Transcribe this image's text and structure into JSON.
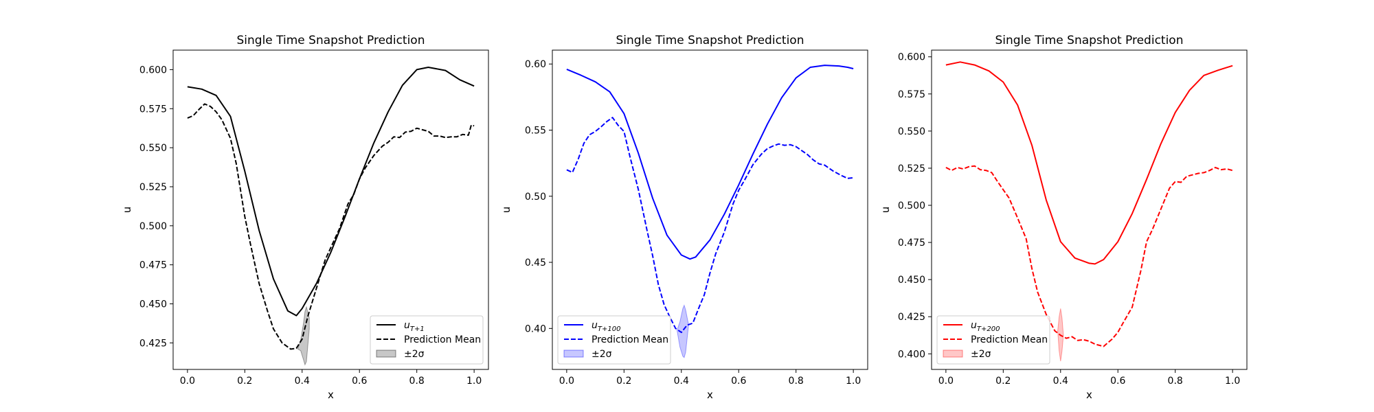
{
  "figure": {
    "background": "#ffffff"
  },
  "chart_data": [
    {
      "type": "line",
      "title": "Single Time Snapshot Prediction",
      "xlabel": "x",
      "ylabel": "u",
      "xlim": [
        -0.05,
        1.05
      ],
      "ylim": [
        0.408,
        0.6125
      ],
      "xticks": [
        0.0,
        0.2,
        0.4,
        0.6,
        0.8,
        1.0
      ],
      "xtick_labels": [
        "0.0",
        "0.2",
        "0.4",
        "0.6",
        "0.8",
        "1.0"
      ],
      "yticks": [
        0.425,
        0.45,
        0.475,
        0.5,
        0.525,
        0.55,
        0.575,
        0.6
      ],
      "ytick_labels": [
        "0.425",
        "0.450",
        "0.475",
        "0.500",
        "0.525",
        "0.550",
        "0.575",
        "0.600"
      ],
      "color": "#000000",
      "legend_position": "lower-right",
      "series": [
        {
          "name": "u_{T+1}",
          "label_main": "u",
          "label_sub": "T+1",
          "style": "solid",
          "x": [
            0,
            0.05,
            0.1,
            0.15,
            0.2,
            0.25,
            0.3,
            0.35,
            0.38,
            0.4,
            0.45,
            0.5,
            0.55,
            0.6,
            0.65,
            0.7,
            0.75,
            0.8,
            0.84,
            0.9,
            0.95,
            1.0
          ],
          "y": [
            0.589,
            0.5875,
            0.5835,
            0.57,
            0.535,
            0.497,
            0.466,
            0.4455,
            0.4425,
            0.447,
            0.463,
            0.483,
            0.506,
            0.53,
            0.553,
            0.573,
            0.59,
            0.6,
            0.6015,
            0.5995,
            0.5935,
            0.5895
          ]
        },
        {
          "name": "Prediction Mean",
          "style": "dashed",
          "x": [
            0,
            0.02,
            0.04,
            0.06,
            0.08,
            0.1,
            0.12,
            0.15,
            0.17,
            0.2,
            0.22,
            0.25,
            0.28,
            0.3,
            0.33,
            0.36,
            0.38,
            0.4,
            0.42,
            0.45,
            0.48,
            0.5,
            0.53,
            0.56,
            0.58,
            0.6,
            0.62,
            0.65,
            0.68,
            0.7,
            0.72,
            0.74,
            0.76,
            0.78,
            0.8,
            0.82,
            0.84,
            0.86,
            0.88,
            0.9,
            0.92,
            0.94,
            0.96,
            0.98,
            0.99,
            1.0
          ],
          "y": [
            0.569,
            0.5705,
            0.5745,
            0.578,
            0.5765,
            0.573,
            0.568,
            0.556,
            0.54,
            0.506,
            0.488,
            0.463,
            0.445,
            0.434,
            0.425,
            0.421,
            0.4215,
            0.4275,
            0.442,
            0.46,
            0.478,
            0.486,
            0.498,
            0.514,
            0.52,
            0.53,
            0.537,
            0.545,
            0.551,
            0.5535,
            0.557,
            0.5565,
            0.56,
            0.5605,
            0.5625,
            0.5615,
            0.5605,
            0.5575,
            0.5575,
            0.5565,
            0.557,
            0.557,
            0.5585,
            0.558,
            0.5645,
            0.564
          ]
        },
        {
          "name": "±2σ",
          "style": "band",
          "x": [
            0.385,
            0.395,
            0.405,
            0.41,
            0.415,
            0.425
          ],
          "lower": [
            0.421,
            0.42,
            0.414,
            0.411,
            0.413,
            0.434
          ],
          "upper": [
            0.421,
            0.427,
            0.438,
            0.445,
            0.448,
            0.441
          ]
        }
      ]
    },
    {
      "type": "line",
      "title": "Single Time Snapshot Prediction",
      "xlabel": "x",
      "ylabel": "u",
      "xlim": [
        -0.05,
        1.05
      ],
      "ylim": [
        0.369,
        0.6105
      ],
      "xticks": [
        0.0,
        0.2,
        0.4,
        0.6,
        0.8,
        1.0
      ],
      "xtick_labels": [
        "0.0",
        "0.2",
        "0.4",
        "0.6",
        "0.8",
        "1.0"
      ],
      "yticks": [
        0.4,
        0.45,
        0.5,
        0.55,
        0.6
      ],
      "ytick_labels": [
        "0.40",
        "0.45",
        "0.50",
        "0.55",
        "0.60"
      ],
      "color": "#0000ff",
      "legend_position": "lower-left",
      "series": [
        {
          "name": "u_{T+100}",
          "label_main": "u",
          "label_sub": "T+100",
          "style": "solid",
          "x": [
            0,
            0.05,
            0.1,
            0.15,
            0.2,
            0.25,
            0.3,
            0.35,
            0.4,
            0.43,
            0.45,
            0.5,
            0.55,
            0.6,
            0.65,
            0.7,
            0.75,
            0.8,
            0.85,
            0.9,
            0.95,
            0.98,
            1.0
          ],
          "y": [
            0.596,
            0.5915,
            0.5865,
            0.579,
            0.5625,
            0.5325,
            0.4985,
            0.4705,
            0.4555,
            0.4525,
            0.454,
            0.467,
            0.4865,
            0.5085,
            0.532,
            0.5545,
            0.5745,
            0.5895,
            0.5975,
            0.599,
            0.5985,
            0.5975,
            0.5965
          ]
        },
        {
          "name": "Prediction Mean",
          "style": "dashed",
          "x": [
            0,
            0.02,
            0.04,
            0.06,
            0.08,
            0.1,
            0.12,
            0.14,
            0.16,
            0.18,
            0.2,
            0.22,
            0.25,
            0.28,
            0.3,
            0.32,
            0.34,
            0.36,
            0.38,
            0.4,
            0.42,
            0.44,
            0.46,
            0.48,
            0.5,
            0.52,
            0.55,
            0.58,
            0.6,
            0.62,
            0.65,
            0.68,
            0.7,
            0.72,
            0.74,
            0.76,
            0.78,
            0.8,
            0.82,
            0.84,
            0.86,
            0.88,
            0.9,
            0.93,
            0.96,
            0.98,
            1.0
          ],
          "y": [
            0.52,
            0.518,
            0.528,
            0.54,
            0.5465,
            0.549,
            0.5525,
            0.5565,
            0.5595,
            0.5535,
            0.549,
            0.5305,
            0.505,
            0.4745,
            0.455,
            0.433,
            0.418,
            0.4085,
            0.4,
            0.397,
            0.4025,
            0.404,
            0.415,
            0.4255,
            0.442,
            0.4565,
            0.473,
            0.494,
            0.5045,
            0.512,
            0.524,
            0.532,
            0.536,
            0.538,
            0.5395,
            0.5385,
            0.539,
            0.5375,
            0.5345,
            0.5315,
            0.5275,
            0.5245,
            0.5235,
            0.519,
            0.5155,
            0.5135,
            0.514
          ]
        },
        {
          "name": "±2σ",
          "style": "band",
          "x": [
            0.385,
            0.395,
            0.405,
            0.41,
            0.415,
            0.425
          ],
          "lower": [
            0.3985,
            0.386,
            0.379,
            0.378,
            0.382,
            0.402
          ],
          "upper": [
            0.3985,
            0.405,
            0.415,
            0.4175,
            0.414,
            0.403
          ]
        }
      ]
    },
    {
      "type": "line",
      "title": "Single Time Snapshot Prediction",
      "xlabel": "x",
      "ylabel": "u",
      "xlim": [
        -0.05,
        1.05
      ],
      "ylim": [
        0.3895,
        0.6045
      ],
      "xticks": [
        0.0,
        0.2,
        0.4,
        0.6,
        0.8,
        1.0
      ],
      "xtick_labels": [
        "0.0",
        "0.2",
        "0.4",
        "0.6",
        "0.8",
        "1.0"
      ],
      "yticks": [
        0.4,
        0.425,
        0.45,
        0.475,
        0.5,
        0.525,
        0.55,
        0.575,
        0.6
      ],
      "ytick_labels": [
        "0.400",
        "0.425",
        "0.450",
        "0.475",
        "0.500",
        "0.525",
        "0.550",
        "0.575",
        "0.600"
      ],
      "color": "#ff0000",
      "legend_position": "lower-left",
      "series": [
        {
          "name": "u_{T+200}",
          "label_main": "u",
          "label_sub": "T+200",
          "style": "solid",
          "x": [
            0,
            0.05,
            0.1,
            0.15,
            0.2,
            0.25,
            0.3,
            0.35,
            0.4,
            0.45,
            0.5,
            0.52,
            0.55,
            0.6,
            0.65,
            0.7,
            0.75,
            0.8,
            0.85,
            0.9,
            0.95,
            1.0
          ],
          "y": [
            0.5945,
            0.5965,
            0.5945,
            0.5905,
            0.583,
            0.5675,
            0.5405,
            0.5035,
            0.4755,
            0.4645,
            0.461,
            0.4605,
            0.4635,
            0.4755,
            0.4945,
            0.5175,
            0.5415,
            0.5625,
            0.5775,
            0.5875,
            0.591,
            0.594
          ]
        },
        {
          "name": "Prediction Mean",
          "style": "dashed",
          "x": [
            0,
            0.02,
            0.04,
            0.06,
            0.08,
            0.1,
            0.12,
            0.14,
            0.16,
            0.18,
            0.2,
            0.22,
            0.25,
            0.28,
            0.3,
            0.32,
            0.35,
            0.38,
            0.4,
            0.42,
            0.44,
            0.46,
            0.48,
            0.5,
            0.52,
            0.55,
            0.58,
            0.6,
            0.62,
            0.65,
            0.68,
            0.7,
            0.72,
            0.75,
            0.78,
            0.8,
            0.82,
            0.84,
            0.86,
            0.88,
            0.9,
            0.92,
            0.94,
            0.96,
            0.98,
            1.0
          ],
          "y": [
            0.5255,
            0.5235,
            0.5255,
            0.5245,
            0.526,
            0.5265,
            0.524,
            0.5235,
            0.522,
            0.516,
            0.5105,
            0.505,
            0.4915,
            0.4775,
            0.4575,
            0.4415,
            0.4265,
            0.4155,
            0.4125,
            0.4105,
            0.4115,
            0.409,
            0.4095,
            0.4085,
            0.4065,
            0.405,
            0.41,
            0.4145,
            0.4215,
            0.4315,
            0.456,
            0.4755,
            0.4835,
            0.4975,
            0.5115,
            0.516,
            0.5155,
            0.5195,
            0.5205,
            0.5215,
            0.522,
            0.5235,
            0.5255,
            0.524,
            0.5245,
            0.5235
          ]
        },
        {
          "name": "±2σ",
          "style": "band",
          "x": [
            0.39,
            0.395,
            0.4,
            0.405,
            0.41
          ],
          "lower": [
            0.4155,
            0.402,
            0.395,
            0.402,
            0.4125
          ],
          "upper": [
            0.4155,
            0.425,
            0.4305,
            0.424,
            0.4125
          ]
        }
      ]
    }
  ]
}
